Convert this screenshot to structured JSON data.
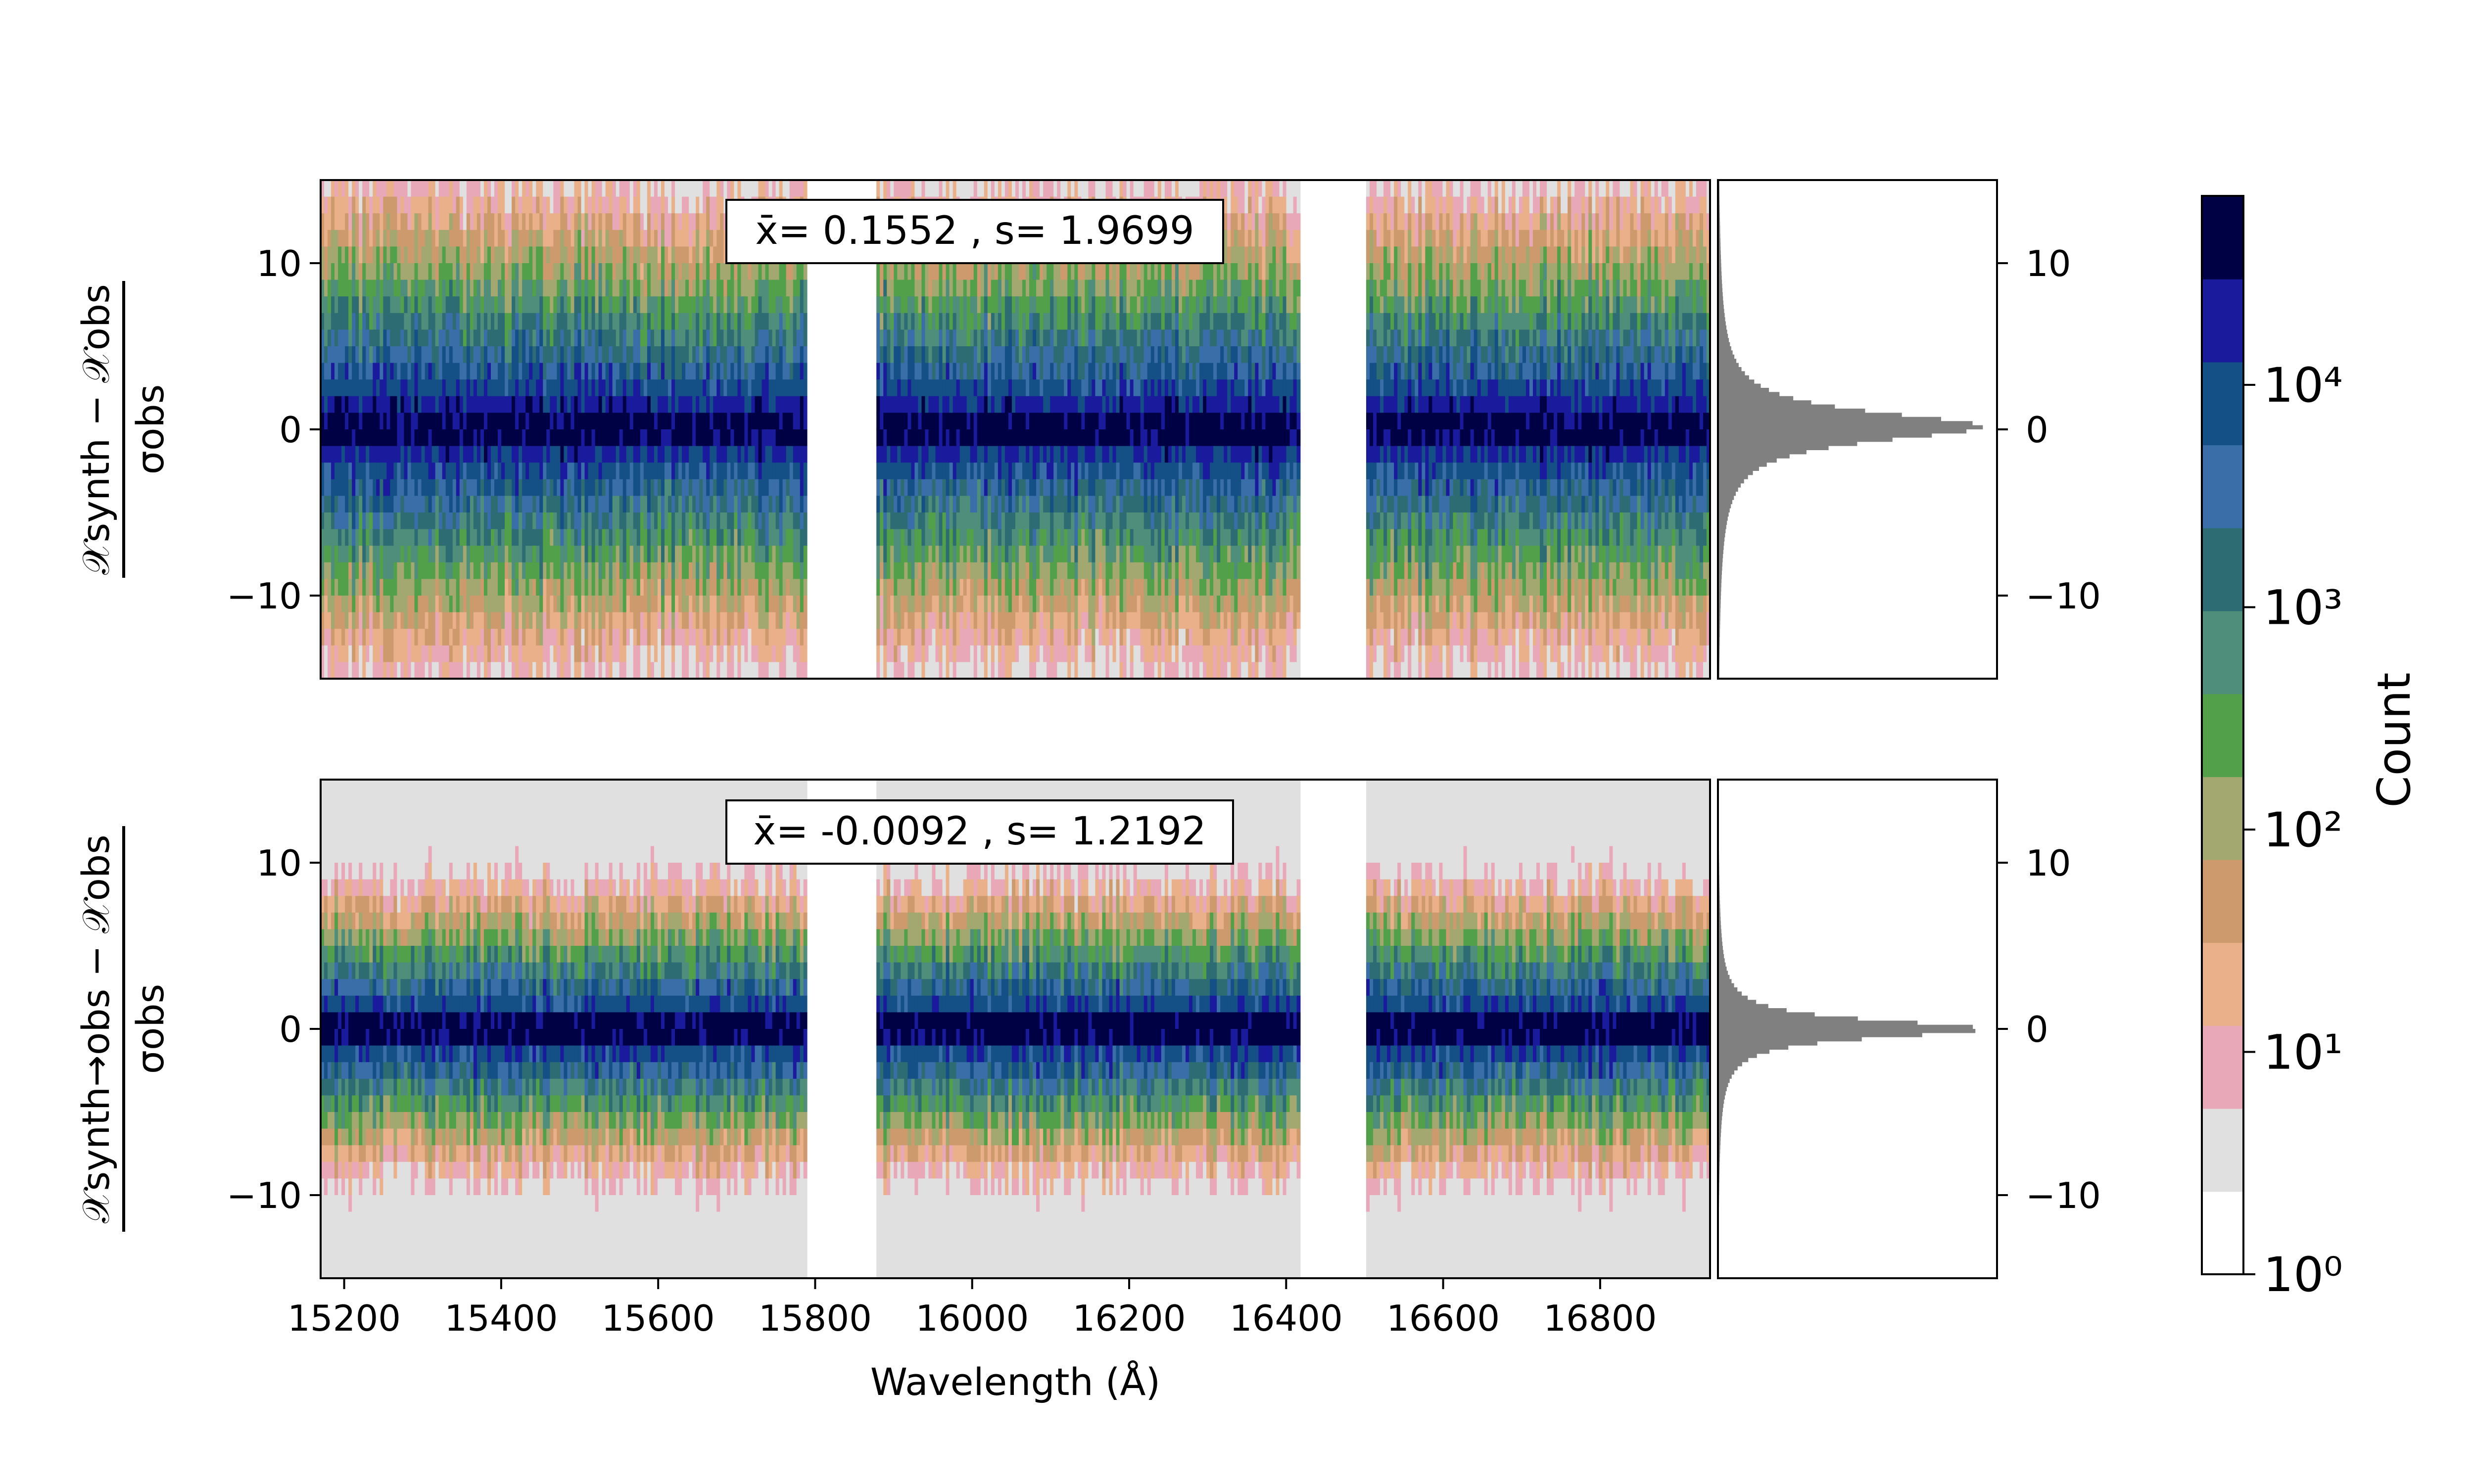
{
  "chart_data": [
    {
      "type": "heatmap",
      "panel": "top",
      "ylabel": {
        "numerator": "𝒳synth − 𝒳obs",
        "denominator": "σobs"
      },
      "stats_box": "x̄= 0.1552 , s= 1.9699",
      "mean": 0.1552,
      "std": 1.9699,
      "xlim": [
        15170,
        16940
      ],
      "ylim": [
        -15,
        15
      ],
      "yticks": [
        "10",
        "0",
        "−10"
      ],
      "ytick_values": [
        10,
        0,
        -10
      ],
      "gaps": [
        [
          15790,
          15880
        ],
        [
          16420,
          16500
        ]
      ],
      "side_histogram": {
        "yticks": [
          "10",
          "0",
          "−10"
        ],
        "peak_at": 0,
        "color": "#808080"
      }
    },
    {
      "type": "heatmap",
      "panel": "bottom",
      "ylabel": {
        "numerator": "𝒳synth→obs − 𝒳obs",
        "denominator": "σobs"
      },
      "stats_box": "x̄= -0.0092 , s= 1.2192",
      "mean": -0.0092,
      "std": 1.2192,
      "xlabel": "Wavelength (Å)",
      "xticks": [
        "15200",
        "15400",
        "15600",
        "15800",
        "16000",
        "16200",
        "16400",
        "16600",
        "16800"
      ],
      "xtick_values": [
        15200,
        15400,
        15600,
        15800,
        16000,
        16200,
        16400,
        16600,
        16800
      ],
      "xlim": [
        15170,
        16940
      ],
      "ylim": [
        -15,
        15
      ],
      "yticks": [
        "10",
        "0",
        "−10"
      ],
      "ytick_values": [
        10,
        0,
        -10
      ],
      "gaps": [
        [
          15790,
          15880
        ],
        [
          16420,
          16500
        ]
      ],
      "side_histogram": {
        "yticks": [
          "10",
          "0",
          "−10"
        ],
        "peak_at": 0,
        "color": "#808080"
      }
    }
  ],
  "colorbar": {
    "label": "Count",
    "scale": "log",
    "ticks": [
      "10⁰",
      "10¹",
      "10²",
      "10³",
      "10⁴"
    ],
    "tick_exponents": [
      0,
      1,
      2,
      3,
      4
    ],
    "colors": [
      "#ffffff",
      "#e0e0e0",
      "#e8a8b8",
      "#eab08a",
      "#cc9a6c",
      "#a3a870",
      "#52a04a",
      "#4e8e7a",
      "#2e6c74",
      "#3a6ea8",
      "#144f86",
      "#1a1a9c",
      "#000045"
    ]
  }
}
